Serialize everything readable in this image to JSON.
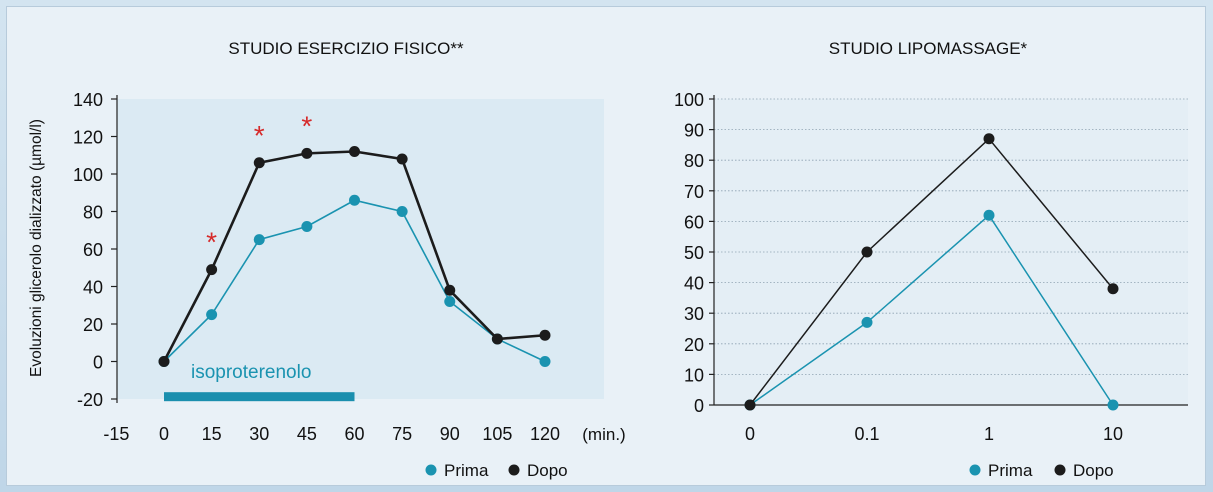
{
  "chart_data": [
    {
      "type": "line",
      "title": "STUDIO ESERCIZIO FISICO**",
      "ylabel": "Evoluzioni glicerolo dializzato (µmol/l)",
      "xlabel": "(min.)",
      "x_ticks": [
        "-15",
        "0",
        "15",
        "30",
        "45",
        "60",
        "75",
        "90",
        "105",
        "120"
      ],
      "y_ticks": [
        "140",
        "120",
        "100",
        "80",
        "60",
        "40",
        "20",
        "0",
        "-20"
      ],
      "xlim": [
        -15,
        135
      ],
      "ylim": [
        -20,
        140
      ],
      "series": [
        {
          "name": "Prima",
          "color": "#1a93b0",
          "x": [
            0,
            15,
            30,
            45,
            60,
            75,
            90,
            105,
            120
          ],
          "y": [
            0,
            25,
            65,
            72,
            86,
            80,
            32,
            12,
            0
          ]
        },
        {
          "name": "Dopo",
          "color": "#1c1c1c",
          "x": [
            0,
            15,
            30,
            45,
            60,
            75,
            90,
            105,
            120
          ],
          "y": [
            0,
            49,
            106,
            111,
            112,
            108,
            38,
            12,
            14
          ]
        }
      ],
      "annotations": {
        "significance": [
          {
            "x": 15,
            "y": 49
          },
          {
            "x": 30,
            "y": 106
          },
          {
            "x": 45,
            "y": 111
          }
        ],
        "significance_symbol": "*",
        "bar_label": "isoproterenolo",
        "bar_range": [
          0,
          60
        ]
      },
      "legend_position": "bottom-right",
      "grid": false
    },
    {
      "type": "line",
      "title": "STUDIO LIPOMASSAGE*",
      "categories": [
        "0",
        "0.1",
        "1",
        "10"
      ],
      "y_ticks": [
        "100",
        "90",
        "80",
        "70",
        "60",
        "50",
        "40",
        "30",
        "20",
        "10",
        "0"
      ],
      "ylim": [
        0,
        100
      ],
      "series": [
        {
          "name": "Prima",
          "color": "#1a93b0",
          "values": [
            0,
            27,
            62,
            0
          ]
        },
        {
          "name": "Dopo",
          "color": "#1c1c1c",
          "values": [
            0,
            50,
            87,
            38
          ]
        }
      ],
      "legend_position": "bottom-right",
      "grid": true
    }
  ],
  "legend": {
    "prima": "Prima",
    "dopo": "Dopo"
  }
}
